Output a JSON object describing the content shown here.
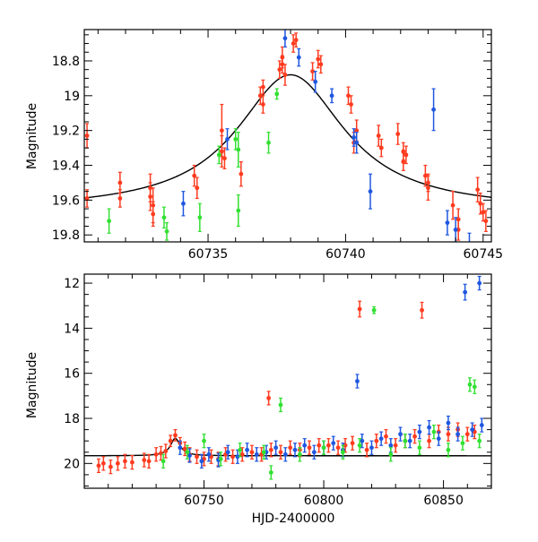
{
  "colors": {
    "blue": "#1f57e0",
    "red": "#ff3b1f",
    "green": "#32e032",
    "black": "#000000"
  },
  "chart_data": [
    {
      "type": "scatter",
      "ylabel": "Magnitude",
      "xlabel": "",
      "xlim": [
        60730.5,
        60745.3
      ],
      "ylim": [
        18.62,
        19.84
      ],
      "y_inverted": true,
      "xticks": [
        60735,
        60740,
        60745
      ],
      "yticks": [
        18.8,
        19.0,
        19.2,
        19.4,
        19.6,
        19.8
      ],
      "yticklabels": [
        "18.8",
        "19",
        "19.2",
        "19.4",
        "19.6",
        "19.8"
      ],
      "model_curve": {
        "type": "lorentzian",
        "center": 60738.0,
        "peak": 18.88,
        "baseline": 19.66,
        "halfwidth": 2.4
      },
      "series": [
        {
          "color": "red",
          "points": [
            [
              60730.6,
              19.23,
              0.07
            ],
            [
              60730.6,
              19.59,
              0.05
            ],
            [
              60731.8,
              19.5,
              0.06
            ],
            [
              60731.8,
              19.59,
              0.05
            ],
            [
              60732.9,
              19.53,
              0.08
            ],
            [
              60732.9,
              19.58,
              0.08
            ],
            [
              60733.0,
              19.63,
              0.1
            ],
            [
              60733.0,
              19.68,
              0.07
            ],
            [
              60734.5,
              19.46,
              0.06
            ],
            [
              60734.6,
              19.53,
              0.06
            ],
            [
              60735.5,
              19.32,
              0.09
            ],
            [
              60735.5,
              19.2,
              0.15
            ],
            [
              60735.6,
              19.36,
              0.06
            ],
            [
              60736.2,
              19.45,
              0.07
            ],
            [
              60736.9,
              19.0,
              0.05
            ],
            [
              60737.0,
              19.05,
              0.05
            ],
            [
              60737.0,
              18.95,
              0.04
            ],
            [
              60737.6,
              18.85,
              0.05
            ],
            [
              60737.7,
              18.78,
              0.06
            ],
            [
              60737.7,
              18.82,
              0.05
            ],
            [
              60737.8,
              18.88,
              0.06
            ],
            [
              60738.1,
              18.7,
              0.05
            ],
            [
              60738.2,
              18.68,
              0.04
            ],
            [
              60738.8,
              18.86,
              0.05
            ],
            [
              60739.0,
              18.79,
              0.05
            ],
            [
              60739.1,
              18.82,
              0.05
            ],
            [
              60740.1,
              19.0,
              0.05
            ],
            [
              60740.2,
              19.05,
              0.05
            ],
            [
              60740.3,
              19.27,
              0.06
            ],
            [
              60740.4,
              19.2,
              0.06
            ],
            [
              60741.2,
              19.23,
              0.06
            ],
            [
              60741.3,
              19.3,
              0.05
            ],
            [
              60741.9,
              19.22,
              0.06
            ],
            [
              60742.1,
              19.32,
              0.05
            ],
            [
              60742.1,
              19.38,
              0.05
            ],
            [
              60742.2,
              19.34,
              0.05
            ],
            [
              60742.9,
              19.46,
              0.06
            ],
            [
              60743.0,
              19.53,
              0.07
            ],
            [
              60743.0,
              19.5,
              0.05
            ],
            [
              60743.9,
              19.63,
              0.08
            ],
            [
              60744.1,
              19.71,
              0.06
            ],
            [
              60744.1,
              19.77,
              0.06
            ],
            [
              60744.8,
              19.54,
              0.07
            ],
            [
              60744.9,
              19.62,
              0.06
            ],
            [
              60745.0,
              19.67,
              0.05
            ],
            [
              60745.1,
              19.72,
              0.06
            ]
          ]
        },
        {
          "color": "blue",
          "points": [
            [
              60734.1,
              19.62,
              0.07
            ],
            [
              60735.7,
              19.25,
              0.06
            ],
            [
              60737.8,
              18.67,
              0.05
            ],
            [
              60738.3,
              18.78,
              0.05
            ],
            [
              60738.9,
              18.92,
              0.06
            ],
            [
              60739.5,
              19.0,
              0.04
            ],
            [
              60740.3,
              19.24,
              0.05
            ],
            [
              60740.4,
              19.27,
              0.06
            ],
            [
              60740.9,
              19.55,
              0.1
            ],
            [
              60743.2,
              19.08,
              0.12
            ],
            [
              60743.7,
              19.73,
              0.07
            ],
            [
              60744.0,
              19.77,
              0.07
            ],
            [
              60744.5,
              19.85,
              0.06
            ]
          ]
        },
        {
          "color": "green",
          "points": [
            [
              60731.4,
              19.72,
              0.07
            ],
            [
              60733.4,
              19.7,
              0.06
            ],
            [
              60733.5,
              19.78,
              0.05
            ],
            [
              60734.7,
              19.7,
              0.08
            ],
            [
              60735.4,
              19.34,
              0.05
            ],
            [
              60736.0,
              19.25,
              0.06
            ],
            [
              60736.1,
              19.66,
              0.09
            ],
            [
              60736.1,
              19.31,
              0.1
            ],
            [
              60737.2,
              19.27,
              0.06
            ],
            [
              60737.5,
              18.99,
              0.03
            ]
          ]
        }
      ]
    },
    {
      "type": "scatter",
      "ylabel": "Magnitude",
      "xlabel": "HJD-2400000",
      "xlim": [
        60700,
        60870
      ],
      "ylim": [
        11.6,
        21.1
      ],
      "y_inverted": true,
      "xticks": [
        60750,
        60800,
        60850
      ],
      "yticks": [
        12,
        14,
        16,
        18,
        20
      ],
      "baseline_mag": 19.66,
      "model_curve": {
        "type": "lorentzian",
        "center": 60738.0,
        "peak": 18.88,
        "baseline": 19.66,
        "halfwidth": 2.4
      },
      "series": [
        {
          "color": "red",
          "points": [
            [
              60706,
              20.1,
              0.3
            ],
            [
              60708,
              20.0,
              0.3
            ],
            [
              60711,
              20.15,
              0.3
            ],
            [
              60714,
              20.0,
              0.3
            ],
            [
              60717,
              19.9,
              0.3
            ],
            [
              60720,
              19.95,
              0.3
            ],
            [
              60725,
              19.85,
              0.3
            ],
            [
              60727,
              19.9,
              0.3
            ],
            [
              60730,
              19.6,
              0.3
            ],
            [
              60732,
              19.55,
              0.3
            ],
            [
              60734,
              19.45,
              0.3
            ],
            [
              60736,
              19.0,
              0.25
            ],
            [
              60738,
              18.75,
              0.25
            ],
            [
              60740,
              19.1,
              0.25
            ],
            [
              60742,
              19.35,
              0.3
            ],
            [
              60744,
              19.6,
              0.3
            ],
            [
              60747,
              19.7,
              0.3
            ],
            [
              60750,
              19.8,
              0.3
            ],
            [
              60753,
              19.7,
              0.3
            ],
            [
              60756,
              19.8,
              0.3
            ],
            [
              60759,
              19.6,
              0.3
            ],
            [
              60762,
              19.7,
              0.3
            ],
            [
              60766,
              19.6,
              0.3
            ],
            [
              60770,
              19.5,
              0.3
            ],
            [
              60774,
              19.6,
              0.3
            ],
            [
              60777,
              17.1,
              0.3
            ],
            [
              60778,
              19.4,
              0.3
            ],
            [
              60782,
              19.5,
              0.3
            ],
            [
              60786,
              19.3,
              0.3
            ],
            [
              60790,
              19.4,
              0.3
            ],
            [
              60794,
              19.3,
              0.3
            ],
            [
              60798,
              19.2,
              0.3
            ],
            [
              60802,
              19.2,
              0.3
            ],
            [
              60806,
              19.3,
              0.3
            ],
            [
              60809,
              19.2,
              0.3
            ],
            [
              60812,
              19.1,
              0.3
            ],
            [
              60815,
              13.15,
              0.35
            ],
            [
              60818,
              19.4,
              0.3
            ],
            [
              60822,
              19.0,
              0.3
            ],
            [
              60826,
              18.8,
              0.3
            ],
            [
              60830,
              19.2,
              0.3
            ],
            [
              60834,
              19.0,
              0.3
            ],
            [
              60838,
              18.8,
              0.3
            ],
            [
              60841,
              13.2,
              0.35
            ],
            [
              60844,
              19.0,
              0.3
            ],
            [
              60848,
              18.6,
              0.3
            ],
            [
              60852,
              18.7,
              0.3
            ],
            [
              60856,
              18.5,
              0.3
            ],
            [
              60860,
              18.7,
              0.3
            ],
            [
              60863,
              18.6,
              0.3
            ]
          ]
        },
        {
          "color": "blue",
          "points": [
            [
              60740,
              19.3,
              0.3
            ],
            [
              60744,
              19.65,
              0.3
            ],
            [
              60749,
              19.9,
              0.3
            ],
            [
              60752,
              19.6,
              0.3
            ],
            [
              60756,
              19.85,
              0.3
            ],
            [
              60760,
              19.5,
              0.3
            ],
            [
              60764,
              19.7,
              0.3
            ],
            [
              60768,
              19.4,
              0.3
            ],
            [
              60772,
              19.6,
              0.3
            ],
            [
              60776,
              19.5,
              0.3
            ],
            [
              60780,
              19.3,
              0.3
            ],
            [
              60784,
              19.6,
              0.3
            ],
            [
              60788,
              19.4,
              0.3
            ],
            [
              60792,
              19.2,
              0.3
            ],
            [
              60796,
              19.5,
              0.3
            ],
            [
              60800,
              19.3,
              0.3
            ],
            [
              60804,
              19.1,
              0.3
            ],
            [
              60808,
              19.4,
              0.3
            ],
            [
              60814,
              16.35,
              0.3
            ],
            [
              60816,
              19.0,
              0.3
            ],
            [
              60820,
              19.3,
              0.3
            ],
            [
              60824,
              18.9,
              0.3
            ],
            [
              60828,
              19.2,
              0.3
            ],
            [
              60832,
              18.7,
              0.3
            ],
            [
              60836,
              19.0,
              0.3
            ],
            [
              60840,
              18.6,
              0.3
            ],
            [
              60844,
              18.4,
              0.3
            ],
            [
              60848,
              18.9,
              0.3
            ],
            [
              60852,
              18.2,
              0.3
            ],
            [
              60856,
              18.7,
              0.3
            ],
            [
              60859,
              12.4,
              0.35
            ],
            [
              60862,
              18.5,
              0.3
            ],
            [
              60865,
              12.0,
              0.3
            ],
            [
              60866,
              18.3,
              0.3
            ]
          ]
        },
        {
          "color": "green",
          "points": [
            [
              60733,
              19.9,
              0.3
            ],
            [
              60743,
              19.5,
              0.3
            ],
            [
              60750,
              19.0,
              0.3
            ],
            [
              60757,
              19.8,
              0.3
            ],
            [
              60765,
              19.4,
              0.3
            ],
            [
              60775,
              19.5,
              0.3
            ],
            [
              60778,
              20.4,
              0.3
            ],
            [
              60782,
              17.4,
              0.3
            ],
            [
              60790,
              19.6,
              0.3
            ],
            [
              60800,
              19.3,
              0.3
            ],
            [
              60808,
              19.5,
              0.3
            ],
            [
              60815,
              19.2,
              0.3
            ],
            [
              60821,
              13.2,
              0.15
            ],
            [
              60828,
              19.6,
              0.3
            ],
            [
              60834,
              19.0,
              0.3
            ],
            [
              60840,
              19.3,
              0.3
            ],
            [
              60846,
              18.6,
              0.3
            ],
            [
              60852,
              19.4,
              0.3
            ],
            [
              60858,
              19.1,
              0.3
            ],
            [
              60861,
              16.5,
              0.3
            ],
            [
              60863,
              16.6,
              0.3
            ],
            [
              60865,
              19.0,
              0.3
            ]
          ]
        }
      ]
    }
  ]
}
